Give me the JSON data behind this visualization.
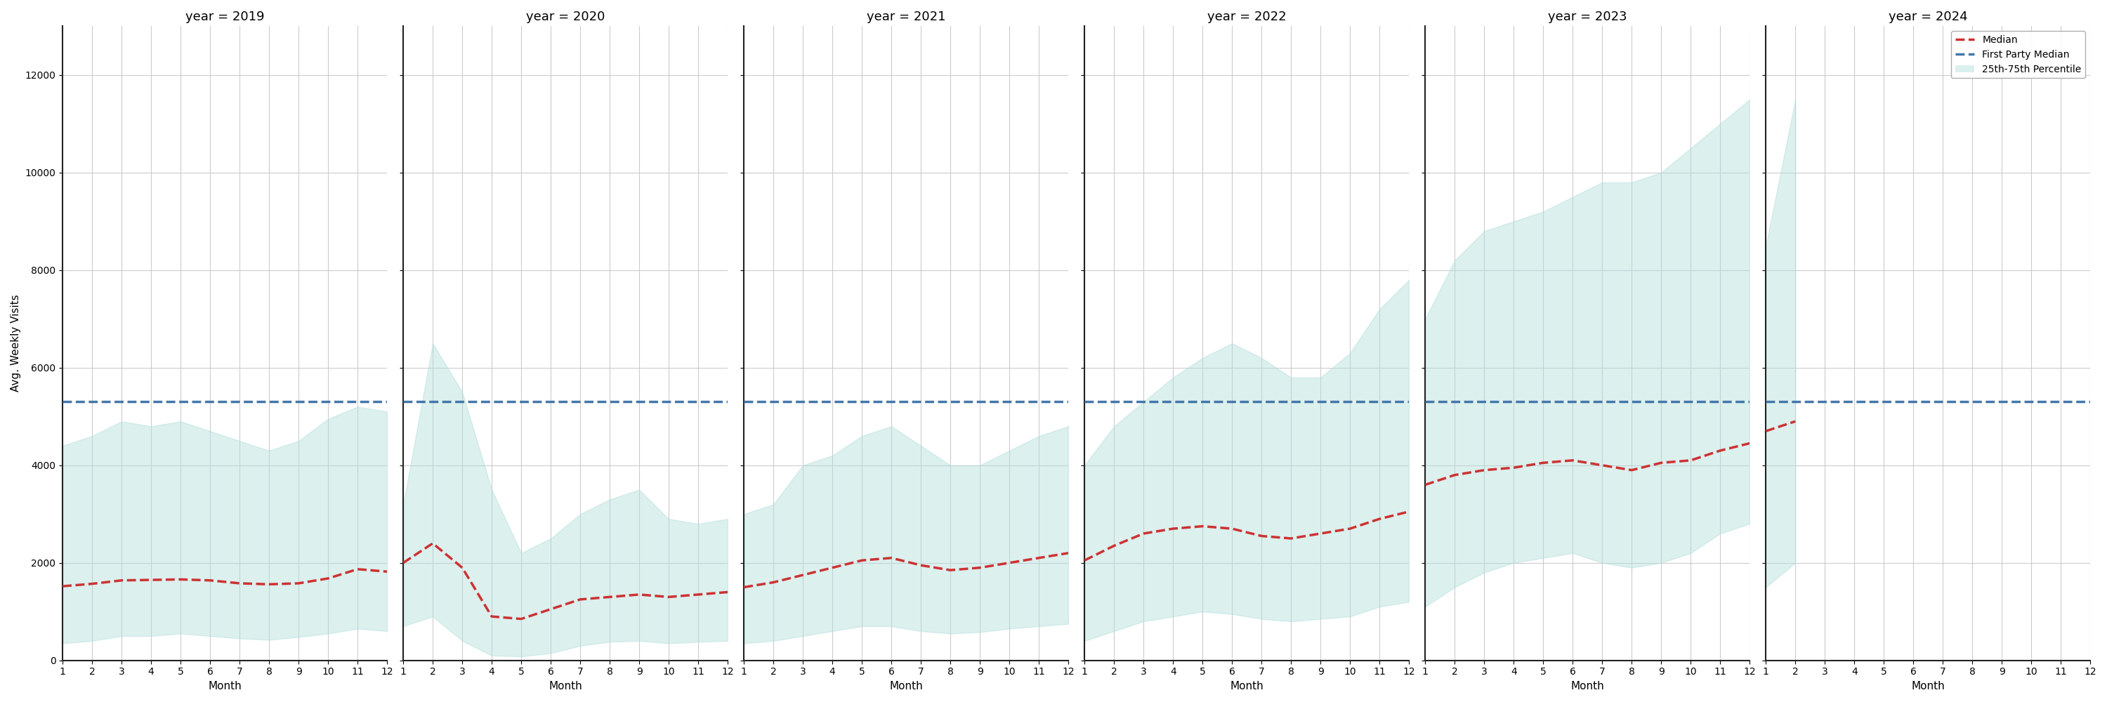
{
  "years": [
    2019,
    2020,
    2021,
    2022,
    2023,
    2024
  ],
  "first_party_median": 5300,
  "months": [
    1,
    2,
    3,
    4,
    5,
    6,
    7,
    8,
    9,
    10,
    11,
    12
  ],
  "median": {
    "2019": [
      1520,
      1570,
      1640,
      1650,
      1660,
      1640,
      1580,
      1560,
      1580,
      1680,
      1870,
      1820
    ],
    "2020": [
      2000,
      2400,
      1900,
      900,
      850,
      1050,
      1250,
      1300,
      1350,
      1300,
      1350,
      1400
    ],
    "2021": [
      1500,
      1600,
      1750,
      1900,
      2050,
      2100,
      1950,
      1850,
      1900,
      2000,
      2100,
      2200
    ],
    "2022": [
      2050,
      2350,
      2600,
      2700,
      2750,
      2700,
      2550,
      2500,
      2600,
      2700,
      2900,
      3050
    ],
    "2023": [
      3600,
      3800,
      3900,
      3950,
      4050,
      4100,
      4000,
      3900,
      4050,
      4100,
      4300,
      4450
    ],
    "2024": [
      4700,
      4900,
      null,
      null,
      null,
      null,
      null,
      null,
      null,
      null,
      null,
      null
    ]
  },
  "p25": {
    "2019": [
      350,
      400,
      500,
      500,
      550,
      500,
      450,
      420,
      480,
      550,
      650,
      600
    ],
    "2020": [
      700,
      900,
      400,
      100,
      80,
      150,
      300,
      380,
      400,
      350,
      380,
      400
    ],
    "2021": [
      350,
      400,
      500,
      600,
      700,
      700,
      600,
      550,
      580,
      650,
      700,
      750
    ],
    "2022": [
      400,
      600,
      800,
      900,
      1000,
      950,
      850,
      800,
      850,
      900,
      1100,
      1200
    ],
    "2023": [
      1100,
      1500,
      1800,
      2000,
      2100,
      2200,
      2000,
      1900,
      2000,
      2200,
      2600,
      2800
    ],
    "2024": [
      1500,
      2000,
      null,
      null,
      null,
      null,
      null,
      null,
      null,
      null,
      null,
      null
    ]
  },
  "p75": {
    "2019": [
      4400,
      4600,
      4900,
      4800,
      4900,
      4700,
      4500,
      4300,
      4500,
      4950,
      5200,
      5100
    ],
    "2020": [
      3200,
      6500,
      5500,
      3500,
      2200,
      2500,
      3000,
      3300,
      3500,
      2900,
      2800,
      2900
    ],
    "2021": [
      3000,
      3200,
      4000,
      4200,
      4600,
      4800,
      4400,
      4000,
      4000,
      4300,
      4600,
      4800
    ],
    "2022": [
      4000,
      4800,
      5300,
      5800,
      6200,
      6500,
      6200,
      5800,
      5800,
      6300,
      7200,
      7800
    ],
    "2023": [
      7000,
      8200,
      8800,
      9000,
      9200,
      9500,
      9800,
      9800,
      10000,
      10500,
      11000,
      11500
    ],
    "2024": [
      8500,
      11500,
      null,
      null,
      null,
      null,
      null,
      null,
      null,
      null,
      null,
      null
    ]
  },
  "ylabel": "Avg. Weekly Visits",
  "xlabel": "Month",
  "ylim": [
    0,
    13000
  ],
  "yticks": [
    0,
    2000,
    4000,
    6000,
    8000,
    10000,
    12000
  ],
  "fill_color": "#b2dfdb",
  "fill_alpha": 0.45,
  "median_color": "#cc3333",
  "fp_median_color": "#4477aa",
  "bg_color": "#ffffff",
  "grid_color": "#cccccc",
  "title_fontsize": 13,
  "label_fontsize": 11,
  "tick_fontsize": 10,
  "legend_labels": [
    "Median",
    "First Party Median",
    "25th-75th Percentile"
  ]
}
